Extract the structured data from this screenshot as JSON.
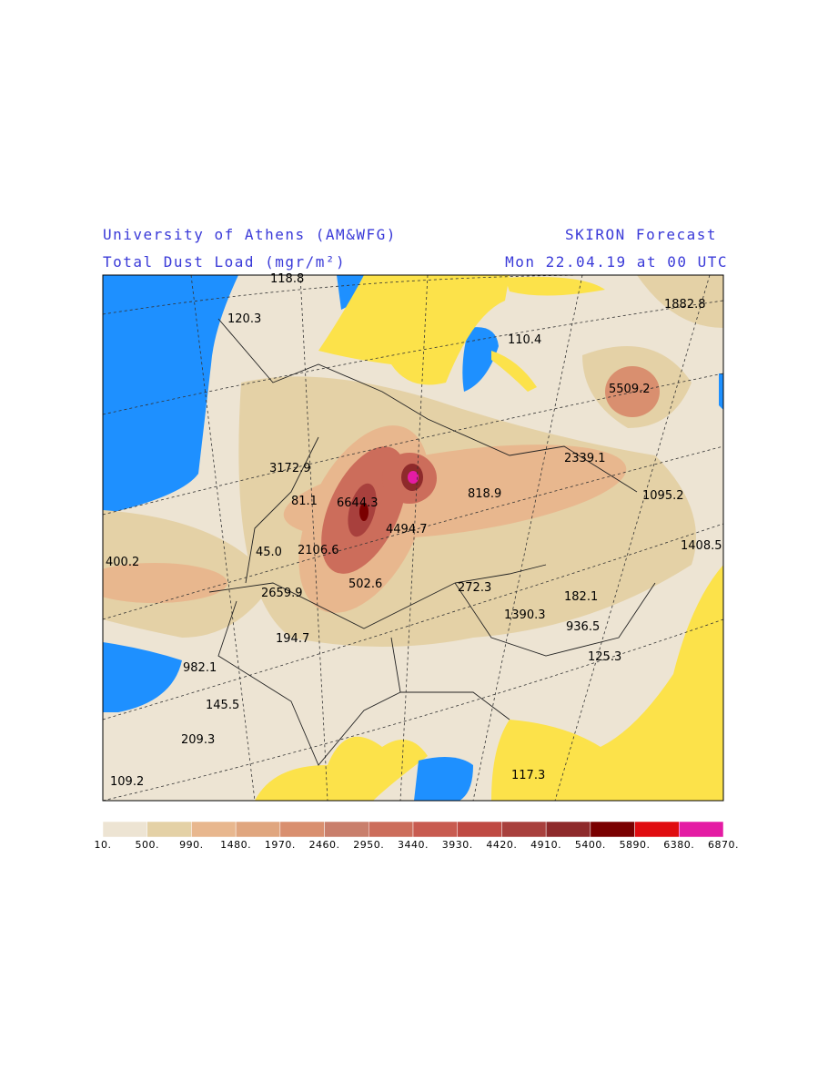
{
  "header": {
    "institution": "University of Athens (AM&WFG)",
    "product": "SKIRON Forecast",
    "field": "Total Dust Load (mgr/m²)",
    "valid_time": "Mon 22.04.19 at 00 UTC"
  },
  "map": {
    "labels": [
      "1882.8",
      "120.3",
      "118.8",
      "110.4",
      "5509.2",
      "3172.9",
      "2339.1",
      "81.1",
      "6644.3",
      "818.9",
      "1095.2",
      "4494.7",
      "45.0",
      "2106.6",
      "1408.5",
      "400.2",
      "502.6",
      "272.3",
      "182.1",
      "2659.9",
      "1390.3",
      "936.5",
      "194.7",
      "125.3",
      "982.1",
      "145.5",
      "209.3",
      "117.3",
      "109.2"
    ]
  },
  "legend": {
    "labels": [
      "10.",
      "500.",
      "990.",
      "1480.",
      "1970.",
      "2460.",
      "2950.",
      "3440.",
      "3930.",
      "4420.",
      "4910.",
      "5400.",
      "5890.",
      "6380.",
      "6870."
    ],
    "colors": [
      "#ede4d3",
      "#e4d1a6",
      "#e8b78e",
      "#e0a67f",
      "#d98f6f",
      "#c97f6c",
      "#cc6d5b",
      "#c85b50",
      "#bf4a43",
      "#a8403d",
      "#8e2a2b",
      "#7a0000",
      "#e00c10",
      "#e41ca4"
    ]
  }
}
